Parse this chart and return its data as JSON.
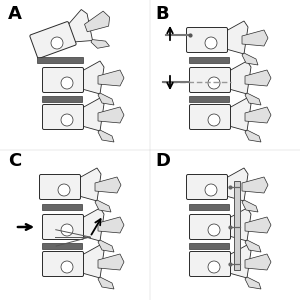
{
  "fig_width": 3.0,
  "fig_height": 3.0,
  "dpi": 100,
  "bg_color": "#ffffff",
  "labels": [
    "A",
    "B",
    "C",
    "D"
  ],
  "label_fontsize": 13,
  "label_fontweight": "bold",
  "bone_light": "#f2f2f2",
  "bone_mid": "#e0e0e0",
  "bone_dark": "#c8c8c8",
  "disc_color": "#666666",
  "edge_color": "#2a2a2a",
  "arrow_color": "#111111",
  "screw_color": "#888888",
  "hatch_color": "#aaaaaa",
  "plate_color": "#b0b0b0",
  "panel_A": {
    "disloc": true,
    "screw_top": false,
    "screw_bot": false,
    "arr_up": false,
    "arr_dn": false,
    "arr_right": false,
    "tract": false,
    "plate": false
  },
  "panel_B": {
    "disloc": false,
    "screw_top": true,
    "screw_bot": true,
    "arr_up": true,
    "arr_dn": true,
    "arr_right": false,
    "tract": false,
    "plate": false
  },
  "panel_C": {
    "disloc": false,
    "screw_top": false,
    "screw_bot": false,
    "arr_up": false,
    "arr_dn": false,
    "arr_right": true,
    "tract": true,
    "plate": false
  },
  "panel_D": {
    "disloc": false,
    "screw_top": false,
    "screw_bot": false,
    "arr_up": false,
    "arr_dn": false,
    "arr_right": false,
    "tract": false,
    "plate": true
  }
}
